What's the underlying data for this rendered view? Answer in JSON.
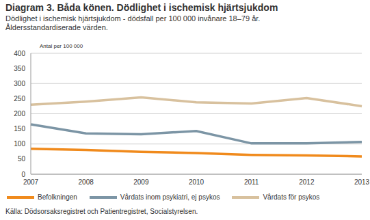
{
  "chart_data": {
    "type": "line",
    "title": "Diagram 3. Båda könen. Dödlighet i ischemisk hjärtsjukdom",
    "subtitle": "Dödlighet i ischemisk hjärtsjukdom - dödsfall per 100 000 invånare 18–79 år. Åldersstandardiserade värden.",
    "y_label": "Antal per 100 000",
    "source": "Källa: Dödsorsaksregistret och Patientregistret, Socialstyrelsen.",
    "categories": [
      "2007",
      "2008",
      "2009",
      "2010",
      "2011",
      "2012",
      "2013"
    ],
    "series": [
      {
        "name": "Befolkningen",
        "color": "#f08a1c",
        "values": [
          84,
          80,
          74,
          70,
          64,
          62,
          59
        ]
      },
      {
        "name": "Vårdats inom psykiatri, ej psykos",
        "color": "#7c95a5",
        "values": [
          165,
          135,
          132,
          143,
          102,
          102,
          107
        ]
      },
      {
        "name": "Vårdats för psykos",
        "color": "#d8c19e",
        "values": [
          230,
          240,
          254,
          238,
          234,
          252,
          225
        ]
      }
    ],
    "ylim": [
      0,
      400
    ],
    "yticks": [
      0,
      50,
      100,
      150,
      200,
      250,
      300,
      350,
      400
    ],
    "grid": true,
    "legend": "bottom"
  }
}
